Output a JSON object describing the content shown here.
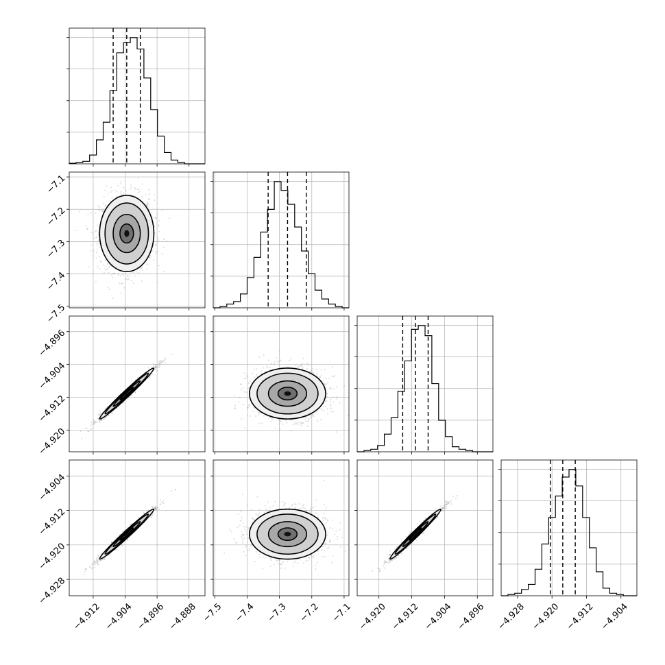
{
  "chart_data": {
    "type": "corner",
    "grid": true,
    "parameters": [
      {
        "range": [
          -4.918,
          -4.884
        ],
        "ticks": [
          -4.912,
          -4.904,
          -4.896,
          -4.888
        ],
        "tick_labels": [
          "−4.912",
          "−4.904",
          "−4.896",
          "−4.888"
        ],
        "quantiles": [
          -4.907,
          -4.9036,
          -4.9002
        ],
        "hist": [
          0.5,
          1,
          2,
          7,
          19,
          33,
          58,
          88,
          96,
          100,
          91,
          68,
          43,
          22,
          9,
          3,
          1,
          0,
          0,
          0
        ]
      },
      {
        "range": [
          -7.505,
          -7.085
        ],
        "ticks": [
          -7.5,
          -7.4,
          -7.3,
          -7.2,
          -7.1
        ],
        "tick_labels": [
          "−7.5",
          "−7.4",
          "−7.3",
          "−7.2",
          "−7.1"
        ],
        "quantiles": [
          -7.335,
          -7.275,
          -7.217
        ],
        "hist": [
          0,
          1,
          3,
          5,
          11,
          24,
          40,
          60,
          78,
          100,
          93,
          82,
          64,
          45,
          27,
          14,
          7,
          3,
          1,
          0
        ]
      },
      {
        "range": [
          -4.9253,
          -4.8922
        ],
        "ticks": [
          -4.92,
          -4.912,
          -4.904,
          -4.896
        ],
        "tick_labels": [
          "−4.920",
          "−4.912",
          "−4.904",
          "−4.896"
        ],
        "quantiles": [
          -4.9142,
          -4.9111,
          -4.908
        ],
        "hist": [
          0,
          1,
          2,
          5,
          14,
          27,
          48,
          72,
          97,
          100,
          92,
          54,
          25,
          12,
          4,
          2,
          1,
          0,
          0,
          0
        ]
      },
      {
        "range": [
          -4.9318,
          -4.9003
        ],
        "ticks": [
          -4.928,
          -4.92,
          -4.912,
          -4.904
        ],
        "tick_labels": [
          "−4.928",
          "−4.920",
          "−4.912",
          "−4.904"
        ],
        "quantiles": [
          -4.9204,
          -4.9175,
          -4.9146
        ],
        "hist": [
          0,
          1,
          2,
          5,
          9,
          21,
          41,
          62,
          79,
          94,
          100,
          87,
          62,
          38,
          19,
          6,
          2,
          1,
          0,
          0
        ]
      }
    ],
    "correlations": {
      "1-0": 0.0,
      "2-0": 0.985,
      "2-1": 0.0,
      "3-0": 0.985,
      "3-1": 0.0,
      "3-2": 0.985
    }
  }
}
